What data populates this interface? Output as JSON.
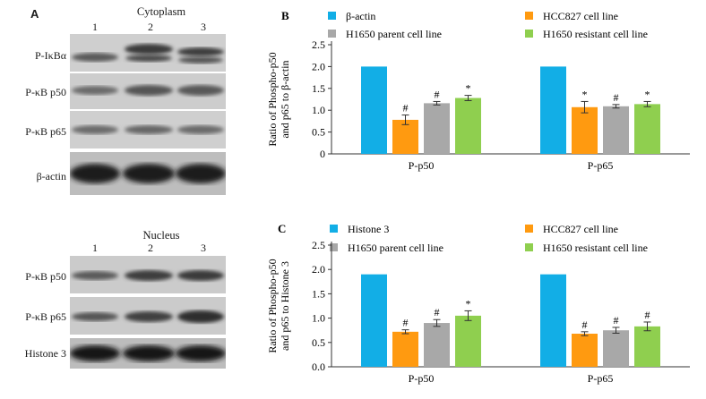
{
  "panel_a": {
    "letter": "A",
    "cytoplasm": {
      "title": "Cytoplasm",
      "lanes": [
        "1",
        "2",
        "3"
      ],
      "rows": [
        "P-IκBα",
        "P-κB p50",
        "P-κB p65",
        "β-actin"
      ]
    },
    "nucleus": {
      "title": "Nucleus",
      "lanes": [
        "1",
        "2",
        "3"
      ],
      "rows": [
        "P-κB p50",
        "P-κB p65",
        "Histone 3"
      ]
    }
  },
  "chart_data": [
    {
      "panel": "B",
      "type": "bar",
      "ylabel": "Ratio of Phospho-p50 and p65 to β-actin",
      "ylim": [
        0,
        2.5
      ],
      "yticks": [
        "0",
        "0.5",
        "1.0",
        "1.5",
        "2.0",
        "2.5"
      ],
      "categories": [
        "P-p50",
        "P-p65"
      ],
      "legend_position": "top",
      "series": [
        {
          "name": "β-actin",
          "color": "#12aee6",
          "values": [
            2.0,
            2.0
          ],
          "errors": [
            0,
            0
          ],
          "marks": [
            "",
            ""
          ]
        },
        {
          "name": "HCC827 cell line",
          "color": "#ff9a10",
          "values": [
            0.78,
            1.07
          ],
          "errors": [
            0.11,
            0.13
          ],
          "marks": [
            "#",
            "*"
          ]
        },
        {
          "name": "H1650 parent cell line",
          "color": "#a8a8a8",
          "values": [
            1.16,
            1.09
          ],
          "errors": [
            0.04,
            0.04
          ],
          "marks": [
            "#",
            "#"
          ]
        },
        {
          "name": "H1650 resistant cell line",
          "color": "#8fcf4f",
          "values": [
            1.28,
            1.14
          ],
          "errors": [
            0.06,
            0.06
          ],
          "marks": [
            "*",
            "*"
          ]
        }
      ]
    },
    {
      "panel": "C",
      "type": "bar",
      "ylabel": "Ratio of Phospho-p50 and p65 to Histone 3",
      "ylim": [
        0,
        2.5
      ],
      "yticks": [
        "0.0",
        "0.5",
        "1.0",
        "1.5",
        "2.0",
        "2.5"
      ],
      "categories": [
        "P-p50",
        "P-p65"
      ],
      "legend_position": "top",
      "series": [
        {
          "name": "Histone 3",
          "color": "#12aee6",
          "values": [
            1.9,
            1.9
          ],
          "errors": [
            0,
            0
          ],
          "marks": [
            "",
            ""
          ]
        },
        {
          "name": "HCC827 cell line",
          "color": "#ff9a10",
          "values": [
            0.72,
            0.68
          ],
          "errors": [
            0.04,
            0.04
          ],
          "marks": [
            "#",
            "#"
          ]
        },
        {
          "name": "H1650 parent cell line",
          "color": "#a8a8a8",
          "values": [
            0.9,
            0.75
          ],
          "errors": [
            0.07,
            0.06
          ],
          "marks": [
            "#",
            "#"
          ]
        },
        {
          "name": "H1650 resistant cell line",
          "color": "#8fcf4f",
          "values": [
            1.05,
            0.83
          ],
          "errors": [
            0.1,
            0.09
          ],
          "marks": [
            "*",
            "#"
          ]
        }
      ]
    }
  ]
}
